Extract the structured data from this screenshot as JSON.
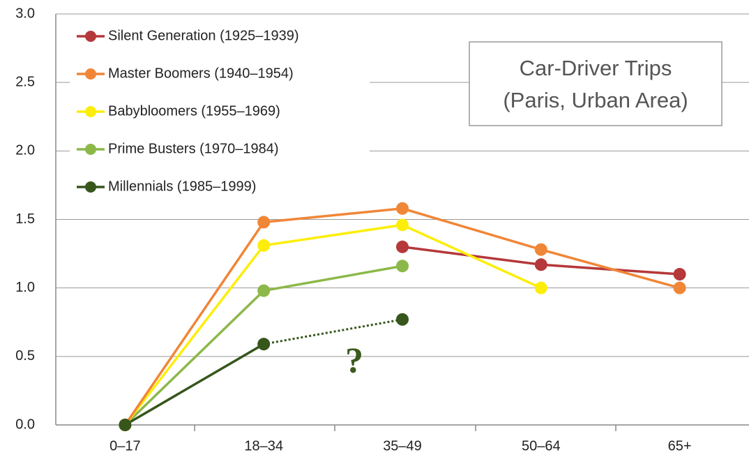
{
  "chart_data": {
    "type": "line",
    "title": [
      "Car-Driver Trips",
      "(Paris, Urban Area)"
    ],
    "annotation": "?",
    "categories": [
      "0–17",
      "18–34",
      "35–49",
      "50–64",
      "65+"
    ],
    "series": [
      {
        "name": "Silent Generation (1925–1939)",
        "color": "#b5383a",
        "values": [
          null,
          null,
          1.3,
          1.17,
          1.1
        ]
      },
      {
        "name": "Master Boomers (1940–1954)",
        "color": "#f08637",
        "values": [
          0,
          1.48,
          1.58,
          1.28,
          1.0
        ]
      },
      {
        "name": "Babybloomers  (1955–1969)",
        "color": "#fcee0a",
        "values": [
          0,
          1.31,
          1.46,
          1.0,
          null
        ]
      },
      {
        "name": "Prime Busters (1970–1984)",
        "color": "#8cb84a",
        "values": [
          0,
          0.98,
          1.16,
          null,
          null
        ]
      },
      {
        "name": "Millennials (1985–1999)",
        "color": "#36561c",
        "values": [
          0,
          0.59,
          0.77,
          null,
          null
        ]
      }
    ],
    "ylim": [
      0,
      3
    ],
    "yticks": [
      {
        "value": 0,
        "label": "0.0"
      },
      0.5,
      {
        "value": 1,
        "label": "1.0"
      },
      1.5,
      {
        "value": 2,
        "label": "2.0"
      },
      2.5,
      {
        "value": 3,
        "label": "3.0"
      }
    ],
    "grid": true,
    "legend": "top-left"
  }
}
